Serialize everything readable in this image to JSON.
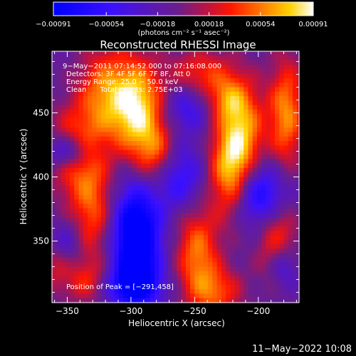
{
  "chart_data": {
    "type": "heatmap",
    "title": "Reconstructed RHESSI Image",
    "xlabel": "Heliocentric X (arcsec)",
    "ylabel": "Heliocentric Y (arcsec)",
    "xlim": [
      -362,
      -168
    ],
    "ylim": [
      302,
      498
    ],
    "x_ticks": [
      -350,
      -300,
      -250,
      -200
    ],
    "x_tick_labels": [
      "−350",
      "−300",
      "−250",
      "−200"
    ],
    "y_ticks": [
      350,
      400,
      450
    ],
    "y_tick_labels": [
      "350",
      "400",
      "450"
    ],
    "colorbar": {
      "range": [
        -0.00091,
        0.00091
      ],
      "ticks": [
        -0.00091,
        -0.00054,
        -0.00018,
        0.00018,
        0.00054,
        0.00091
      ],
      "tick_labels": [
        "−0.00091",
        "−0.00054",
        "−0.00018",
        "0.00018",
        "0.00054",
        "0.00091"
      ],
      "label": "(photons cm⁻² s⁻¹ asec⁻²)",
      "colormap": "blue-purple-red-yellow-white"
    },
    "grid": false,
    "peak": {
      "x": -291,
      "y": 458
    },
    "blobs": [
      {
        "x": -296,
        "y": 455,
        "amp": 0.00095,
        "sx": 14,
        "sy": 26
      },
      {
        "x": -322,
        "y": 465,
        "amp": 0.0006,
        "sx": 14,
        "sy": 26
      },
      {
        "x": -281,
        "y": 418,
        "amp": 0.00055,
        "sx": 12,
        "sy": 18
      },
      {
        "x": -345,
        "y": 420,
        "amp": 0.0006,
        "sx": 14,
        "sy": 24
      },
      {
        "x": -330,
        "y": 375,
        "amp": 0.00055,
        "sx": 12,
        "sy": 30
      },
      {
        "x": -222,
        "y": 405,
        "amp": 0.0008,
        "sx": 12,
        "sy": 26
      },
      {
        "x": -212,
        "y": 440,
        "amp": 0.00065,
        "sx": 12,
        "sy": 26
      },
      {
        "x": -245,
        "y": 480,
        "amp": 0.0005,
        "sx": 18,
        "sy": 14
      },
      {
        "x": -178,
        "y": 450,
        "amp": 0.0007,
        "sx": 10,
        "sy": 30
      },
      {
        "x": -185,
        "y": 360,
        "amp": 0.0006,
        "sx": 12,
        "sy": 28
      },
      {
        "x": -248,
        "y": 340,
        "amp": 0.00065,
        "sx": 12,
        "sy": 26
      },
      {
        "x": -232,
        "y": 310,
        "amp": 0.0005,
        "sx": 14,
        "sy": 14
      },
      {
        "x": -335,
        "y": 318,
        "amp": 0.0004,
        "sx": 14,
        "sy": 12
      },
      {
        "x": -360,
        "y": 340,
        "amp": 0.0004,
        "sx": 8,
        "sy": 18
      },
      {
        "x": -225,
        "y": 460,
        "amp": 0.0004,
        "sx": 10,
        "sy": 12
      },
      {
        "x": -296,
        "y": 350,
        "amp": -0.00115,
        "sx": 13,
        "sy": 30
      },
      {
        "x": -300,
        "y": 315,
        "amp": -0.0006,
        "sx": 16,
        "sy": 10
      },
      {
        "x": -349,
        "y": 420,
        "amp": -0.0007,
        "sx": 12,
        "sy": 10
      },
      {
        "x": -355,
        "y": 350,
        "amp": -0.00045,
        "sx": 10,
        "sy": 12
      },
      {
        "x": -195,
        "y": 385,
        "amp": -0.00085,
        "sx": 16,
        "sy": 18
      },
      {
        "x": -262,
        "y": 400,
        "amp": -0.0005,
        "sx": 14,
        "sy": 18
      },
      {
        "x": -256,
        "y": 455,
        "amp": -0.0004,
        "sx": 12,
        "sy": 14
      },
      {
        "x": -180,
        "y": 330,
        "amp": -0.00045,
        "sx": 8,
        "sy": 12
      }
    ]
  },
  "info": {
    "line1": "9−May−2011 07:14:52.000 to 07:16:08.000",
    "line2": "Detectors: 3F 4F 5F 6F 7F 8F, Att 0",
    "line3": "Energy Range: 25.0 − 50.0 keV",
    "line4": "Clean      Total counts: 2.75E+03",
    "peak_label": "Position of Peak = [−291,458]"
  },
  "footer": {
    "timestamp": "11−May−2022 10:08"
  },
  "colors": {
    "background": "#000000",
    "text": "#ffffff"
  }
}
